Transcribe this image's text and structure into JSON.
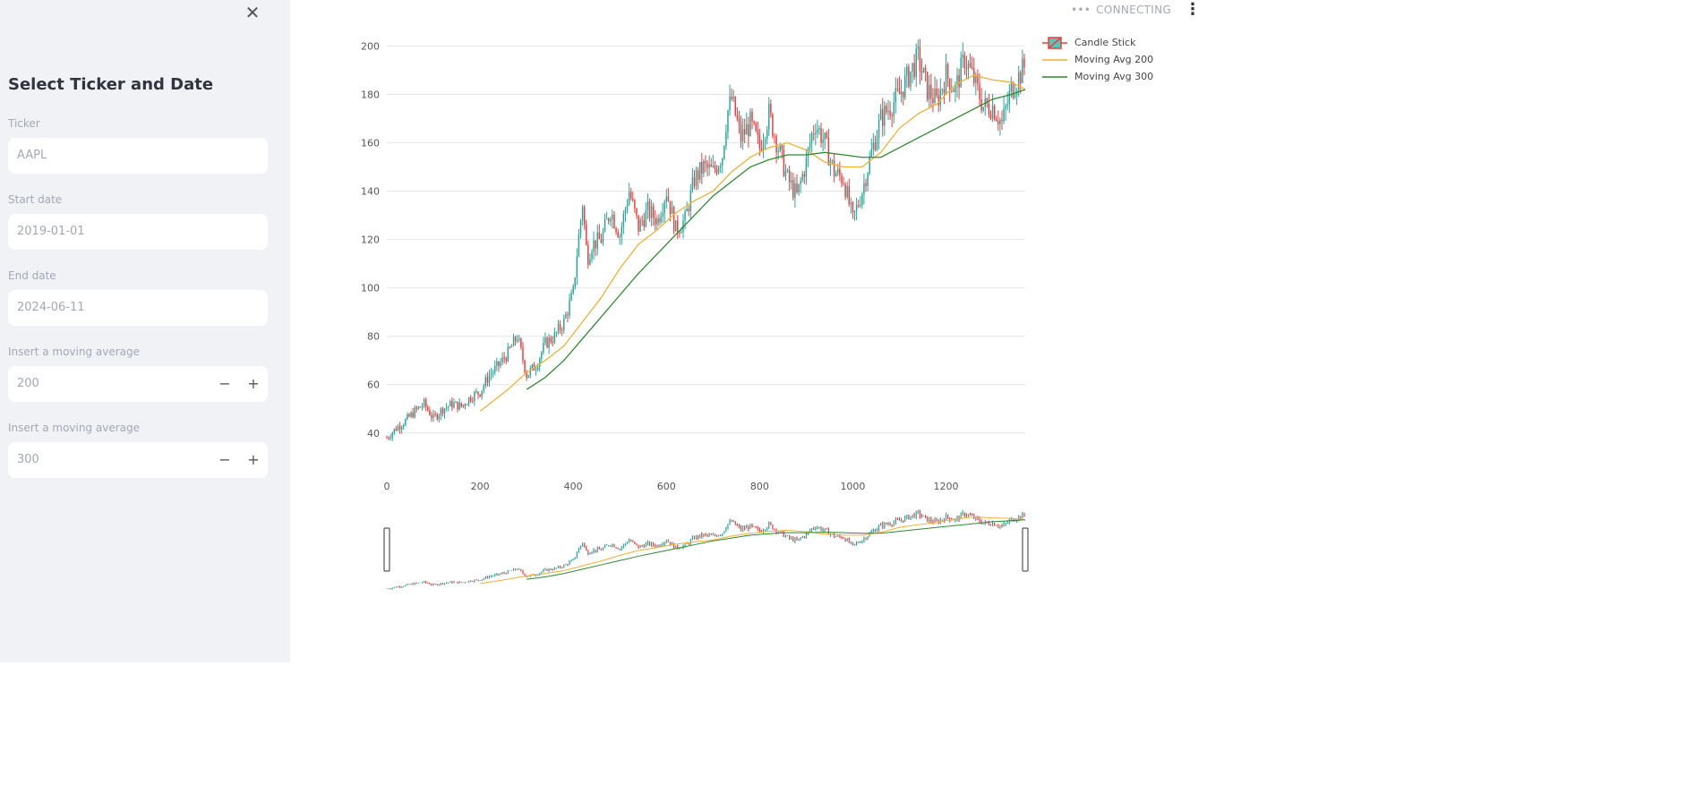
{
  "sidebar": {
    "title": "Select Ticker and Date",
    "fields": [
      {
        "label": "Ticker",
        "value": "AAPL"
      },
      {
        "label": "Start date",
        "value": "2019-01-01"
      },
      {
        "label": "End date",
        "value": "2024-06-11"
      }
    ],
    "moving_averages": [
      {
        "label": "Insert a moving average",
        "value": "200"
      },
      {
        "label": "Insert a moving average",
        "value": "300"
      }
    ],
    "stepper": {
      "minus": "−",
      "plus": "+"
    },
    "close_glyph": "✕"
  },
  "status": {
    "dots": "•••",
    "text": "CONNECTING"
  },
  "menu_glyph": "⋮",
  "colors": {
    "increasing": "#26a69a",
    "decreasing": "#ef3b3b",
    "ma200": "#f2b134",
    "ma300": "#2d8a2d",
    "grid": "#e6e6e6",
    "sidebar_bg": "#f0f2f6"
  },
  "chart_data": {
    "type": "candlestick",
    "x_ticks": [
      0,
      200,
      400,
      600,
      800,
      1000,
      1200
    ],
    "y_ticks": [
      40,
      60,
      80,
      100,
      120,
      140,
      160,
      180,
      200
    ],
    "xlim": [
      0,
      1370
    ],
    "ylim": [
      34,
      202
    ],
    "legend": [
      "Candle Stick",
      "Moving Avg 200",
      "Moving Avg 300"
    ],
    "price_path": [
      [
        0,
        38
      ],
      [
        20,
        42
      ],
      [
        40,
        45
      ],
      [
        60,
        49
      ],
      [
        80,
        52
      ],
      [
        100,
        46
      ],
      [
        120,
        50
      ],
      [
        140,
        52
      ],
      [
        160,
        51
      ],
      [
        180,
        55
      ],
      [
        200,
        57
      ],
      [
        220,
        64
      ],
      [
        240,
        68
      ],
      [
        260,
        73
      ],
      [
        280,
        80
      ],
      [
        300,
        64
      ],
      [
        320,
        68
      ],
      [
        340,
        77
      ],
      [
        360,
        80
      ],
      [
        380,
        86
      ],
      [
        400,
        98
      ],
      [
        410,
        118
      ],
      [
        420,
        135
      ],
      [
        430,
        112
      ],
      [
        440,
        118
      ],
      [
        460,
        120
      ],
      [
        480,
        132
      ],
      [
        500,
        122
      ],
      [
        520,
        140
      ],
      [
        540,
        125
      ],
      [
        560,
        132
      ],
      [
        580,
        128
      ],
      [
        600,
        140
      ],
      [
        620,
        124
      ],
      [
        640,
        128
      ],
      [
        660,
        145
      ],
      [
        680,
        150
      ],
      [
        700,
        148
      ],
      [
        720,
        155
      ],
      [
        730,
        172
      ],
      [
        740,
        178
      ],
      [
        760,
        162
      ],
      [
        780,
        168
      ],
      [
        800,
        158
      ],
      [
        820,
        172
      ],
      [
        840,
        158
      ],
      [
        860,
        145
      ],
      [
        880,
        138
      ],
      [
        900,
        152
      ],
      [
        910,
        162
      ],
      [
        920,
        168
      ],
      [
        940,
        160
      ],
      [
        960,
        148
      ],
      [
        980,
        145
      ],
      [
        1000,
        128
      ],
      [
        1020,
        140
      ],
      [
        1040,
        156
      ],
      [
        1060,
        170
      ],
      [
        1080,
        175
      ],
      [
        1100,
        180
      ],
      [
        1120,
        188
      ],
      [
        1140,
        195
      ],
      [
        1160,
        182
      ],
      [
        1180,
        177
      ],
      [
        1200,
        188
      ],
      [
        1220,
        182
      ],
      [
        1240,
        195
      ],
      [
        1260,
        186
      ],
      [
        1280,
        175
      ],
      [
        1300,
        175
      ],
      [
        1320,
        168
      ],
      [
        1340,
        182
      ],
      [
        1370,
        192
      ]
    ],
    "ma200": [
      [
        200,
        49
      ],
      [
        260,
        58
      ],
      [
        300,
        65
      ],
      [
        340,
        70
      ],
      [
        380,
        76
      ],
      [
        420,
        86
      ],
      [
        460,
        96
      ],
      [
        500,
        108
      ],
      [
        540,
        118
      ],
      [
        580,
        124
      ],
      [
        620,
        131
      ],
      [
        660,
        136
      ],
      [
        700,
        140
      ],
      [
        740,
        148
      ],
      [
        780,
        154
      ],
      [
        820,
        158
      ],
      [
        860,
        160
      ],
      [
        900,
        157
      ],
      [
        940,
        152
      ],
      [
        980,
        150
      ],
      [
        1020,
        150
      ],
      [
        1060,
        156
      ],
      [
        1100,
        166
      ],
      [
        1140,
        172
      ],
      [
        1180,
        176
      ],
      [
        1220,
        184
      ],
      [
        1260,
        188
      ],
      [
        1300,
        186
      ],
      [
        1340,
        185
      ],
      [
        1370,
        182
      ]
    ],
    "ma300": [
      [
        300,
        58
      ],
      [
        340,
        63
      ],
      [
        380,
        70
      ],
      [
        420,
        79
      ],
      [
        460,
        88
      ],
      [
        500,
        97
      ],
      [
        540,
        106
      ],
      [
        580,
        114
      ],
      [
        620,
        122
      ],
      [
        660,
        130
      ],
      [
        700,
        138
      ],
      [
        740,
        144
      ],
      [
        780,
        150
      ],
      [
        820,
        153
      ],
      [
        860,
        155
      ],
      [
        900,
        155
      ],
      [
        940,
        156
      ],
      [
        980,
        155
      ],
      [
        1020,
        154
      ],
      [
        1060,
        154
      ],
      [
        1100,
        158
      ],
      [
        1140,
        162
      ],
      [
        1180,
        166
      ],
      [
        1220,
        170
      ],
      [
        1260,
        174
      ],
      [
        1300,
        178
      ],
      [
        1340,
        180
      ],
      [
        1370,
        182
      ]
    ]
  }
}
